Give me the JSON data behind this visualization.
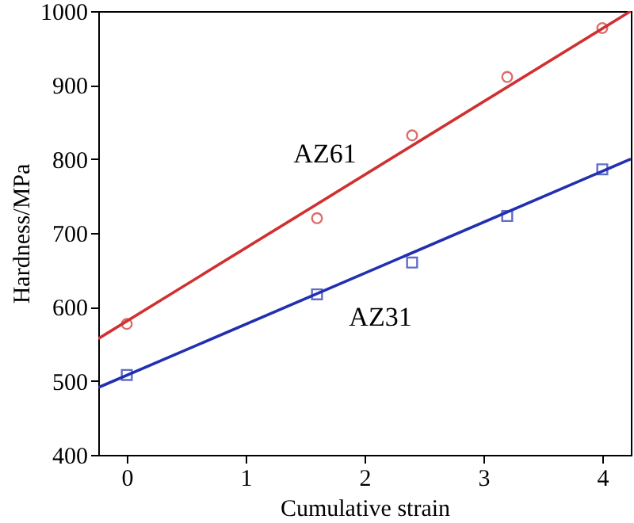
{
  "chart_data": {
    "type": "scatter",
    "xlabel": "Cumulative strain",
    "ylabel": "Hardness/MPa",
    "xlim": [
      -0.24,
      4.24
    ],
    "ylim": [
      400,
      1000
    ],
    "xticks": [
      0,
      1,
      2,
      3,
      4
    ],
    "yticks": [
      400,
      500,
      600,
      700,
      800,
      900,
      1000
    ],
    "series": [
      {
        "name": "AZ61",
        "color": "#d03030",
        "marker": "circle",
        "x": [
          0,
          1.6,
          2.4,
          3.2,
          4
        ],
        "values": [
          577,
          720,
          832,
          911,
          977
        ]
      },
      {
        "name": "AZ31",
        "color": "#2030b0",
        "marker": "square",
        "x": [
          0,
          1.6,
          2.4,
          3.2,
          4
        ],
        "values": [
          508,
          617,
          660,
          723,
          786
        ]
      },
      {
        "type": "line",
        "color": "#d03030",
        "marker": "none",
        "line_style": "solid",
        "x": [
          -0.24,
          4.24
        ],
        "values": [
          557,
          1000
        ]
      },
      {
        "type": "line",
        "color": "#2030b0",
        "marker": "none",
        "line_style": "solid",
        "x": [
          -0.24,
          4.24
        ],
        "values": [
          491,
          800
        ]
      }
    ]
  }
}
